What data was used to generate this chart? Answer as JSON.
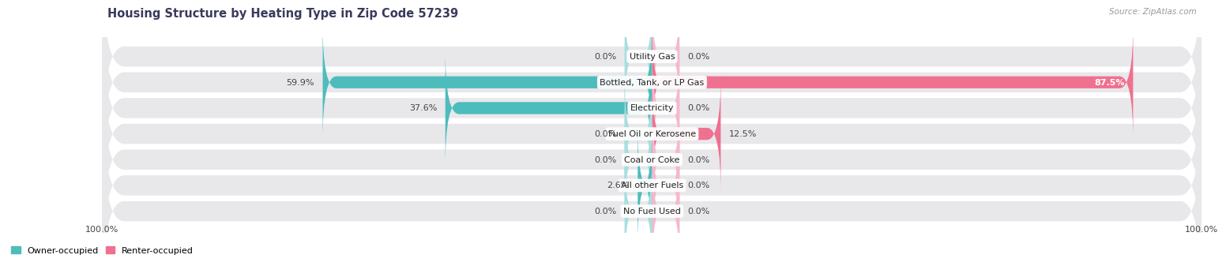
{
  "title": "Housing Structure by Heating Type in Zip Code 57239",
  "source": "Source: ZipAtlas.com",
  "categories": [
    "Utility Gas",
    "Bottled, Tank, or LP Gas",
    "Electricity",
    "Fuel Oil or Kerosene",
    "Coal or Coke",
    "All other Fuels",
    "No Fuel Used"
  ],
  "owner_values": [
    0.0,
    59.9,
    37.6,
    0.0,
    0.0,
    2.6,
    0.0
  ],
  "renter_values": [
    0.0,
    87.5,
    0.0,
    12.5,
    0.0,
    0.0,
    0.0
  ],
  "owner_color": "#4dbcbc",
  "owner_color_light": "#a8dede",
  "renter_color": "#f07090",
  "renter_color_light": "#f5b8cc",
  "row_bg_color": "#e8e8eb",
  "title_color": "#3a3a5c",
  "label_color": "#444444",
  "source_color": "#999999",
  "max_val": 100.0,
  "stub_pct": 5.0,
  "figwidth": 14.06,
  "figheight": 3.4,
  "title_fontsize": 10.5,
  "label_fontsize": 8,
  "cat_fontsize": 8,
  "legend_fontsize": 8,
  "axis_label": "100.0%"
}
